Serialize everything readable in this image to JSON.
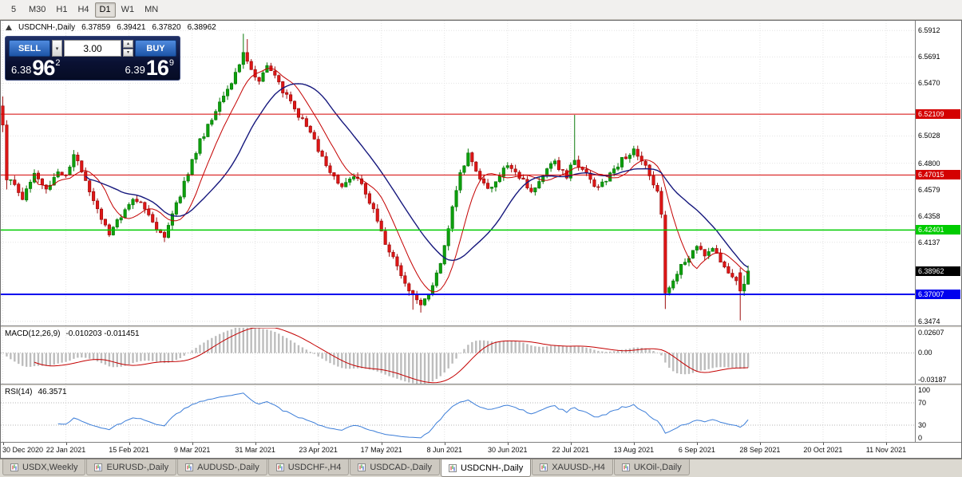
{
  "toolbar": {
    "timeframes": [
      {
        "label": "5",
        "active": false
      },
      {
        "label": "M30",
        "active": false
      },
      {
        "label": "H1",
        "active": false
      },
      {
        "label": "H4",
        "active": false
      },
      {
        "label": "D1",
        "active": true
      },
      {
        "label": "W1",
        "active": false
      },
      {
        "label": "MN",
        "active": false
      }
    ]
  },
  "chart": {
    "title": {
      "symbol": "USDCNH-,Daily"
    }
  },
  "trade_panel": {
    "sell_label": "SELL",
    "buy_label": "BUY",
    "volume": "3.00",
    "bid": {
      "prefix": "6.38",
      "big": "96",
      "sup": "2"
    },
    "ask": {
      "prefix": "6.39",
      "big": "16",
      "sup": "9"
    }
  },
  "tabs": [
    {
      "label": "USDX,Weekly",
      "active": false
    },
    {
      "label": "EURUSD-,Daily",
      "active": false
    },
    {
      "label": "AUDUSD-,Daily",
      "active": false
    },
    {
      "label": "USDCHF-,H4",
      "active": false
    },
    {
      "label": "USDCAD-,Daily",
      "active": false
    },
    {
      "label": "USDCNH-,Daily",
      "active": true
    },
    {
      "label": "XAUUSD-,H4",
      "active": false
    },
    {
      "label": "UKOil-,Daily",
      "active": false
    }
  ],
  "chart_data": {
    "type": "candlestick",
    "symbol": "USDCNH-",
    "timeframe": "Daily",
    "ohlc": {
      "open": "6.37859",
      "high": "6.39421",
      "low": "6.37820",
      "close": "6.38962"
    },
    "price_axis": {
      "min": 6.344,
      "max": 6.5994,
      "ticks": [
        {
          "text": "6.5912",
          "value": 6.5912
        },
        {
          "text": "6.5691",
          "value": 6.5691
        },
        {
          "text": "6.5470",
          "value": 6.547
        },
        {
          "text": "6.5028",
          "value": 6.5028
        },
        {
          "text": "6.4800",
          "value": 6.48
        },
        {
          "text": "6.4579",
          "value": 6.4579
        },
        {
          "text": "6.4358",
          "value": 6.4358
        },
        {
          "text": "6.4137",
          "value": 6.4137
        },
        {
          "text": "6.3474",
          "value": 6.3474
        }
      ]
    },
    "levels": [
      {
        "text": "6.52109",
        "value": 6.52109,
        "color": "#d40000",
        "lineWidth": 1
      },
      {
        "text": "6.47015",
        "value": 6.47015,
        "color": "#d40000",
        "lineWidth": 1
      },
      {
        "text": "6.42401",
        "value": 6.42401,
        "color": "#00cc00",
        "lineWidth": 1.5
      },
      {
        "text": "6.37007",
        "value": 6.37007,
        "color": "#0000ee",
        "lineWidth": 2
      }
    ],
    "current_price": {
      "text": "6.38962",
      "value": 6.38962,
      "bg": "#000000"
    },
    "dates": [
      "30 Dec 2020",
      "22 Jan 2021",
      "15 Feb 2021",
      "9 Mar 2021",
      "31 Mar 2021",
      "23 Apr 2021",
      "17 May 2021",
      "8 Jun 2021",
      "30 Jun 2021",
      "22 Jul 2021",
      "13 Aug 2021",
      "6 Sep 2021",
      "28 Sep 2021",
      "20 Oct 2021",
      "11 Nov 2021"
    ],
    "bars": 190,
    "virtual_bars": 232,
    "bars_per_tick": 16,
    "seed": 20211118,
    "anchor_path": [
      [
        0,
        6.515
      ],
      [
        2,
        6.468
      ],
      [
        5,
        6.452
      ],
      [
        8,
        6.47
      ],
      [
        11,
        6.457
      ],
      [
        14,
        6.474
      ],
      [
        16,
        6.47
      ],
      [
        18,
        6.487
      ],
      [
        21,
        6.466
      ],
      [
        24,
        6.441
      ],
      [
        27,
        6.421
      ],
      [
        30,
        6.436
      ],
      [
        33,
        6.45
      ],
      [
        36,
        6.442
      ],
      [
        39,
        6.426
      ],
      [
        41,
        6.419
      ],
      [
        44,
        6.445
      ],
      [
        47,
        6.472
      ],
      [
        50,
        6.498
      ],
      [
        53,
        6.518
      ],
      [
        56,
        6.536
      ],
      [
        59,
        6.554
      ],
      [
        61,
        6.571
      ],
      [
        63,
        6.556
      ],
      [
        65,
        6.547
      ],
      [
        67,
        6.562
      ],
      [
        69,
        6.552
      ],
      [
        72,
        6.536
      ],
      [
        75,
        6.52
      ],
      [
        78,
        6.506
      ],
      [
        80,
        6.49
      ],
      [
        83,
        6.473
      ],
      [
        86,
        6.461
      ],
      [
        89,
        6.47
      ],
      [
        92,
        6.456
      ],
      [
        95,
        6.431
      ],
      [
        98,
        6.406
      ],
      [
        101,
        6.386
      ],
      [
        104,
        6.369
      ],
      [
        106,
        6.36
      ],
      [
        108,
        6.372
      ],
      [
        110,
        6.387
      ],
      [
        112,
        6.409
      ],
      [
        114,
        6.446
      ],
      [
        116,
        6.473
      ],
      [
        118,
        6.487
      ],
      [
        120,
        6.471
      ],
      [
        123,
        6.457
      ],
      [
        126,
        6.469
      ],
      [
        128,
        6.479
      ],
      [
        131,
        6.469
      ],
      [
        134,
        6.457
      ],
      [
        137,
        6.47
      ],
      [
        140,
        6.481
      ],
      [
        143,
        6.469
      ],
      [
        145,
        6.483
      ],
      [
        148,
        6.47
      ],
      [
        151,
        6.459
      ],
      [
        154,
        6.471
      ],
      [
        157,
        6.483
      ],
      [
        160,
        6.49
      ],
      [
        163,
        6.477
      ],
      [
        166,
        6.455
      ],
      [
        167,
        6.437
      ],
      [
        168,
        6.371
      ],
      [
        170,
        6.381
      ],
      [
        172,
        6.393
      ],
      [
        174,
        6.402
      ],
      [
        176,
        6.41
      ],
      [
        178,
        6.401
      ],
      [
        180,
        6.409
      ],
      [
        182,
        6.396
      ],
      [
        184,
        6.386
      ],
      [
        186,
        6.379
      ],
      [
        187,
        6.373
      ],
      [
        188,
        6.379
      ],
      [
        189,
        6.39
      ]
    ],
    "overrides": [
      {
        "i": 0,
        "o": 6.528,
        "h": 6.536,
        "l": 6.506,
        "c": 6.512
      },
      {
        "i": 1,
        "o": 6.512,
        "h": 6.516,
        "l": 6.458,
        "c": 6.466
      },
      {
        "i": 61,
        "h": 6.5885
      },
      {
        "i": 62,
        "h": 6.584
      },
      {
        "i": 104,
        "l": 6.3572
      },
      {
        "i": 106,
        "l": 6.3548
      },
      {
        "i": 145,
        "h": 6.5205
      },
      {
        "i": 168,
        "o": 6.4365,
        "h": 6.44,
        "l": 6.3578,
        "c": 6.3712
      },
      {
        "i": 187,
        "o": 6.3882,
        "h": 6.3921,
        "l": 6.3482,
        "c": 6.3729
      },
      {
        "i": 188,
        "o": 6.3729,
        "h": 6.3858,
        "l": 6.3688,
        "c": 6.3786
      },
      {
        "i": 189,
        "o": 6.37859,
        "h": 6.39421,
        "l": 6.3782,
        "c": 6.38962
      }
    ],
    "moving_averages": [
      {
        "period": 9,
        "color": "#c40000",
        "width": 1
      },
      {
        "period": 22,
        "color": "#16187d",
        "width": 1.4
      }
    ],
    "candle_colors": {
      "up": "#0da00d",
      "upStroke": "#0a7a0a",
      "down": "#e01616",
      "downStroke": "#9d0e0e"
    },
    "grid_color": "#e4e4e4",
    "macd": {
      "label": "MACD(12,26,9)",
      "values": "-0.010203 -0.011451",
      "fast": 12,
      "slow": 26,
      "signal": 9,
      "range": {
        "min": -0.03187,
        "max": 0.02607
      },
      "axis": [
        {
          "text": "0.02607",
          "value": 0.02607
        },
        {
          "text": "0.00",
          "value": 0
        },
        {
          "text": "-0.03187",
          "value": -0.03187
        }
      ],
      "hist_color": "#bdbdbd",
      "signal_color": "#c40000"
    },
    "rsi": {
      "label": "RSI(14)",
      "value": "46.3571",
      "period": 14,
      "axis": [
        {
          "text": "100",
          "value": 100
        },
        {
          "text": "70",
          "value": 70
        },
        {
          "text": "30",
          "value": 30
        },
        {
          "text": "0",
          "value": 0
        }
      ],
      "levels": [
        70,
        30
      ],
      "color": "#3b7dd8"
    }
  }
}
